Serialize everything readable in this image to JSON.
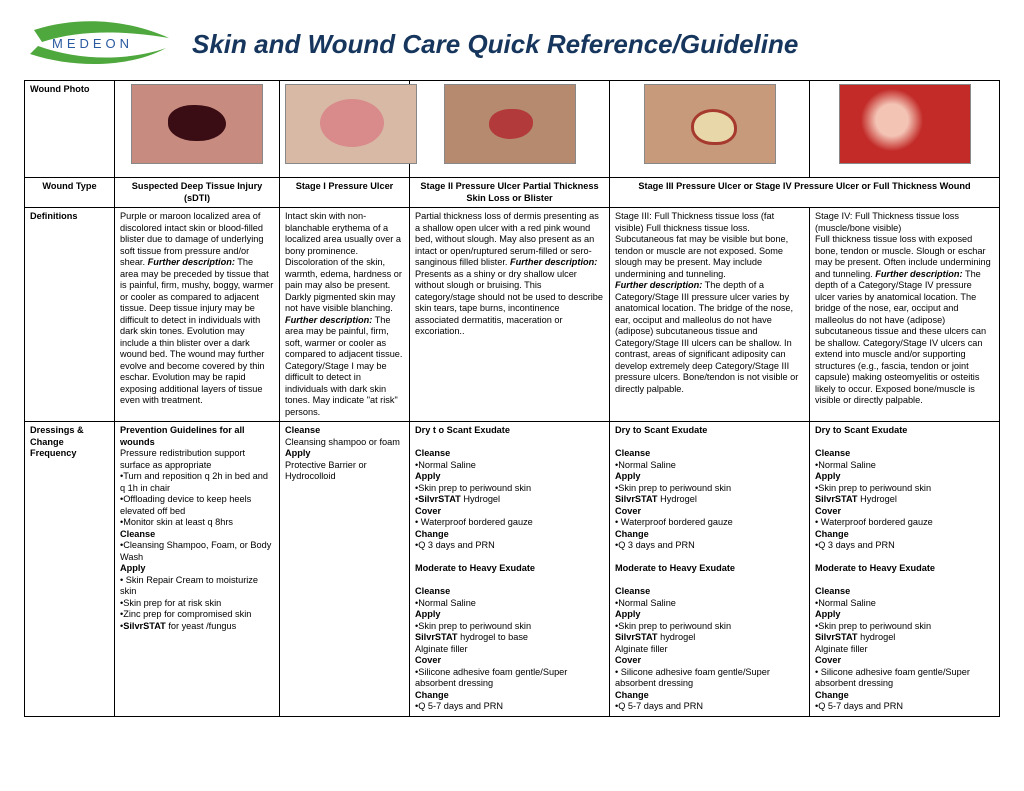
{
  "brand": "MEDEON",
  "title": "Skin and Wound Care Quick Reference/Guideline",
  "rowLabels": {
    "photo": "Wound Photo",
    "type": "Wound Type",
    "def": "Definitions",
    "dress": "Dressings & Change Frequency"
  },
  "cols": [
    {
      "type": "Suspected Deep Tissue Injury (sDTI)",
      "span": 1,
      "photo": {
        "bg": "#c88b80",
        "lesion": {
          "w": 58,
          "h": 36,
          "l": 36,
          "t": 20,
          "bg": "#3a0d14",
          "br": "45% 55% 50% 50%"
        }
      },
      "def": "Purple or maroon localized area of discolored intact skin or blood-filled blister due to damage of underlying soft tissue from pressure and/or shear. <i>Further description:</i> The area may be preceded by tissue that is painful, firm, mushy, boggy, warmer or cooler as compared to adjacent tissue. Deep tissue injury may be difficult to detect in individuals with dark skin tones. Evolution may include a thin blister over a dark wound bed. The wound may further evolve and become covered by thin eschar. Evolution may be rapid exposing additional layers of tissue even with treatment.",
      "dress": "<b>Prevention Guidelines for all wounds</b><br>Pressure redistribution support surface as appropriate<br>•Turn and reposition q 2h in bed and q 1h in chair<br>•Offloading device to keep heels elevated off bed<br>•Monitor skin at least q 8hrs<br><b>Cleanse</b><br>•Cleansing Shampoo, Foam, or Body Wash<br><b>Apply</b><br>• Skin Repair Cream to moisturize skin<br>•Skin prep for at risk skin<br>•Zinc prep for compromised skin<br>•<b>SilvrSTAT</b> for yeast /fungus"
    },
    {
      "type": "Stage I Pressure Ulcer",
      "span": 1,
      "photo": {
        "bg": "#d8b9a6",
        "lesion": {
          "w": 64,
          "h": 48,
          "l": 34,
          "t": 14,
          "bg": "#d98a8a",
          "br": "50%"
        }
      },
      "def": "Intact skin with non-blanchable erythema of a localized area usually over a bony prominence. Discoloration of the skin, warmth, edema, hardness or pain may also be present. Darkly pigmented skin may not have visible blanching. <i>Further description:</i> The area may be painful, firm, soft, warmer or cooler as compared to adjacent tissue. Category/Stage I may be difficult to detect in individuals with dark skin tones. May indicate \"at risk\" persons.",
      "dress": "<b>Cleanse</b><br>Cleansing shampoo or foam<br><b>Apply</b><br>Protective Barrier or Hydrocolloid"
    },
    {
      "type": "Stage II Pressure Ulcer Partial Thickness Skin Loss or Blister",
      "span": 1,
      "photo": {
        "bg": "#b58a6e",
        "lesion": {
          "w": 44,
          "h": 30,
          "l": 44,
          "t": 24,
          "bg": "#b23a3a",
          "br": "50% 45% 55% 50%"
        }
      },
      "def": "Partial thickness loss of dermis presenting as a shallow open ulcer with a red pink wound bed, without slough. May also present as an intact or open/ruptured serum-filled or sero-sanginous filled blister. <i>Further description:</i> Presents as a shiny or dry shallow ulcer without slough or bruising. This category/stage should not be used to describe skin tears, tape burns, incontinence associated dermatitis, maceration or excoriation..",
      "dress": "<b>Dry t o Scant Exudate</b><br><br><b>Cleanse</b><br>•Normal Saline<br><b>Apply</b><br>•Skin prep to periwound skin<br>•<b>SilvrSTAT</b> Hydrogel<br><b>Cover</b><br>• Waterproof bordered gauze<br><b>Change</b><br>•Q 3 days and PRN<br><br><b>Moderate to Heavy Exudate</b><br><br><b>Cleanse</b><br>•Normal Saline<br><b>Apply</b><br>•Skin prep to periwound skin<br><b>SilvrSTAT</b> hydrogel to base<br>Alginate filler<br><b>Cover</b><br>•Silicone adhesive foam gentle/Super absorbent dressing<br><b>Change</b><br>•Q 5-7 days and PRN"
    },
    {
      "type": "Stage III Pressure Ulcer or Stage IV Pressure Ulcer or Full Thickness Wound",
      "span": 2,
      "photoA": {
        "bg": "#c79a7b",
        "lesion": {
          "w": 40,
          "h": 30,
          "l": 46,
          "t": 24,
          "bg": "#e8d7a8",
          "br": "50% 55% 45% 50%",
          "border": "3px solid #a63a2e"
        }
      },
      "photoB": {
        "bg": "#c22b28",
        "lesion": {
          "w": 130,
          "h": 78,
          "l": 0,
          "t": 0,
          "bg": "radial-gradient(circle at 40% 45%, #f3c3b4 0 18%, #c22b28 35%)",
          "br": "0"
        }
      },
      "defA": "Stage III: Full Thickness tissue loss (fat visible) Full thickness tissue loss. Subcutaneous fat may be visible but bone, tendon or muscle are not exposed. Some slough may be present. May include undermining and tunneling.<br><i>Further description:</i> The depth of a Category/Stage III pressure ulcer varies by anatomical location. The bridge of the nose, ear, occiput and malleolus do not have (adipose) subcutaneous tissue and Category/Stage III ulcers can be shallow. In contrast, areas of significant adiposity can develop extremely deep Category/Stage III pressure ulcers. Bone/tendon is not visible or directly palpable.",
      "defB": "Stage IV: Full Thickness  tissue loss (muscle/bone visible)<br>Full thickness tissue loss with exposed bone, tendon or muscle. Slough or eschar may be present. Often include undermining and tunneling. <i>Further description:</i> The depth of a Category/Stage IV pressure ulcer varies by anatomical location. The bridge of the nose, ear, occiput and malleolus do not have (adipose) subcutaneous tissue and these ulcers can be shallow. Category/Stage IV ulcers can extend into muscle and/or supporting structures (e.g., fascia, tendon or joint capsule) making osteomyelitis or osteitis likely to occur. Exposed bone/muscle is visible or directly palpable.",
      "dressA": "<b>Dry to Scant Exudate</b><br><br><b>Cleanse</b><br>•Normal Saline<br><b>Apply</b><br>•Skin prep to periwound skin<br><b>SilvrSTAT</b> Hydrogel<br><b>Cover</b><br>• Waterproof bordered gauze<br><b>Change</b><br>•Q 3 days and PRN<br><br><b>Moderate to Heavy Exudate</b><br><br><b>Cleanse</b><br>•Normal Saline<br><b>Apply</b><br>•Skin prep to periwound skin<br><b>SilvrSTAT</b> hydrogel<br>Alginate filler<br><b>Cover</b><br>• Silicone adhesive foam gentle/Super absorbent dressing<br><b>Change</b><br>•Q 5-7 days and PRN",
      "dressB": "<b>Dry to Scant Exudate</b><br><br><b>Cleanse</b><br>•Normal Saline<br><b>Apply</b><br>•Skin prep to periwound skin<br><b>SilvrSTAT</b> Hydrogel<br><b>Cover</b><br>• Waterproof bordered gauze<br><b>Change</b><br>•Q 3 days and PRN<br><br><b>Moderate to Heavy Exudate</b><br><br><b>Cleanse</b><br>•Normal Saline<br><b>Apply</b><br>•Skin prep to periwound skin<br><b>SilvrSTAT</b> hydrogel<br>Alginate filler<br><b>Cover</b><br>• Silicone adhesive foam gentle/Super absorbent dressing<br><b>Change</b><br>•Q 5-7 days and PRN"
    }
  ]
}
